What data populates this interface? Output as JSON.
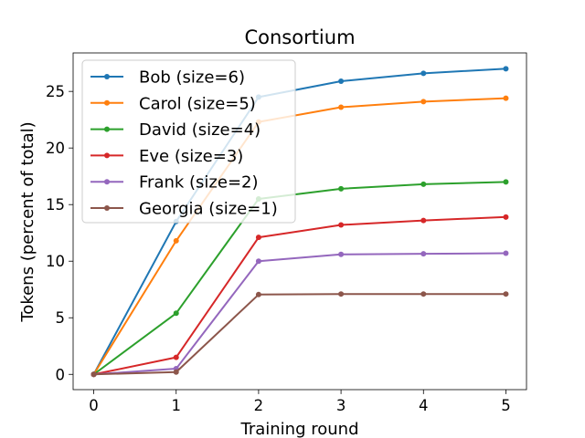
{
  "chart_data": {
    "type": "line",
    "title": "Consortium",
    "xlabel": "Training round",
    "ylabel": "Tokens (percent of total)",
    "x": [
      0,
      1,
      2,
      3,
      4,
      5
    ],
    "xlim": [
      -0.25,
      5.25
    ],
    "ylim": [
      -1.35,
      28.4
    ],
    "xticks": [
      0,
      1,
      2,
      3,
      4,
      5
    ],
    "yticks": [
      0,
      5,
      10,
      15,
      20,
      25
    ],
    "grid": false,
    "legend_position": "top-left",
    "series": [
      {
        "name": "Bob (size=6)",
        "color": "#1f77b4",
        "values": [
          0,
          13.5,
          24.5,
          25.9,
          26.6,
          27.0
        ]
      },
      {
        "name": "Carol (size=5)",
        "color": "#ff7f0e",
        "values": [
          0,
          11.8,
          22.3,
          23.6,
          24.1,
          24.4
        ]
      },
      {
        "name": "David (size=4)",
        "color": "#2ca02c",
        "values": [
          0,
          5.4,
          15.5,
          16.4,
          16.8,
          17.0
        ]
      },
      {
        "name": "Eve (size=3)",
        "color": "#d62728",
        "values": [
          0,
          1.5,
          12.1,
          13.2,
          13.6,
          13.9
        ]
      },
      {
        "name": "Frank (size=2)",
        "color": "#9467bd",
        "values": [
          0,
          0.5,
          10.0,
          10.6,
          10.65,
          10.7
        ]
      },
      {
        "name": "Georgia (size=1)",
        "color": "#8c564b",
        "values": [
          0,
          0.2,
          7.05,
          7.1,
          7.1,
          7.1
        ]
      }
    ]
  }
}
